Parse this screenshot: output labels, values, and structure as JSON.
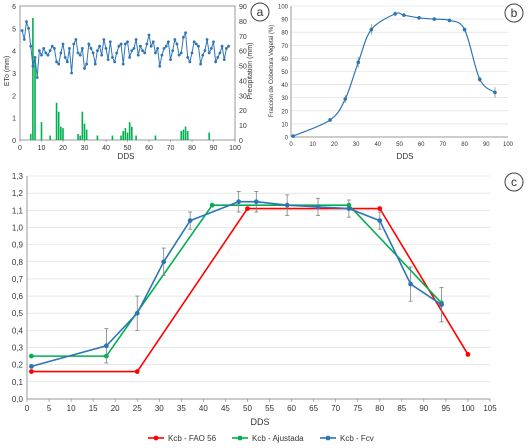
{
  "panel_labels": {
    "a": "a",
    "b": "b",
    "c": "c"
  },
  "colors": {
    "axis": "#7f7f7f",
    "grid": "#d9d9d9",
    "series_blue": "#2e75b6",
    "series_green": "#00b050",
    "series_red": "#ff0000",
    "error_bar": "#7f7f7f",
    "panel_circle": "#404040"
  },
  "chart_data": [
    {
      "id": "a",
      "type": "line",
      "xlabel": "DDS",
      "ylabel": "ETo (mm)",
      "y2label": "Precipitation (mm)",
      "xlim": [
        0,
        100
      ],
      "ylim": [
        0,
        6
      ],
      "y2lim": [
        0,
        90
      ],
      "xticks": [
        0,
        10,
        20,
        30,
        40,
        50,
        60,
        70,
        80,
        90,
        100
      ],
      "yticks": [
        0,
        1,
        2,
        3,
        4,
        5,
        6
      ],
      "y2ticks": [
        0,
        10,
        20,
        30,
        40,
        50,
        60,
        70,
        80,
        90
      ],
      "series": [
        {
          "kind": "line",
          "axis": "left",
          "x": [
            1,
            2,
            3,
            4,
            5,
            6,
            7,
            8,
            9,
            10,
            11,
            12,
            13,
            14,
            15,
            16,
            17,
            18,
            19,
            20,
            21,
            22,
            23,
            24,
            25,
            26,
            27,
            28,
            29,
            30,
            31,
            32,
            33,
            34,
            35,
            36,
            37,
            38,
            39,
            40,
            41,
            42,
            43,
            44,
            45,
            46,
            47,
            48,
            49,
            50,
            51,
            52,
            53,
            54,
            55,
            56,
            57,
            58,
            59,
            60,
            61,
            62,
            63,
            64,
            65,
            66,
            67,
            68,
            69,
            70,
            71,
            72,
            73,
            74,
            75,
            76,
            77,
            78,
            79,
            80,
            81,
            82,
            83,
            84,
            85,
            86,
            87,
            88,
            89,
            90,
            91,
            92,
            93,
            94,
            95,
            96,
            97
          ],
          "values": [
            4.9,
            4.5,
            5.3,
            5.0,
            4.2,
            3.3,
            3.7,
            2.8,
            4.0,
            3.8,
            4.1,
            3.9,
            3.8,
            4.0,
            4.2,
            4.1,
            3.5,
            3.4,
            3.9,
            4.3,
            3.7,
            3.5,
            4.1,
            3.0,
            4.3,
            4.5,
            3.9,
            3.8,
            4.1,
            3.2,
            3.4,
            4.3,
            4.1,
            3.9,
            3.4,
            4.0,
            4.2,
            3.8,
            4.5,
            4.1,
            3.6,
            4.4,
            3.7,
            3.5,
            3.9,
            4.2,
            4.3,
            3.4,
            4.3,
            4.4,
            3.7,
            4.0,
            4.1,
            4.5,
            3.8,
            4.2,
            4.0,
            3.9,
            4.3,
            4.7,
            4.2,
            4.4,
            3.9,
            4.1,
            3.3,
            3.8,
            4.1,
            4.2,
            4.4,
            3.6,
            4.0,
            4.5,
            4.3,
            3.8,
            3.9,
            4.6,
            4.8,
            3.7,
            3.5,
            3.9,
            4.4,
            4.3,
            4.2,
            3.4,
            3.8,
            4.0,
            4.5,
            3.9,
            4.1,
            4.4,
            3.5,
            3.7,
            3.9,
            4.2,
            3.6,
            4.1,
            4.2
          ]
        },
        {
          "kind": "bar",
          "axis": "right",
          "x": [
            5,
            6,
            7,
            10,
            14,
            17,
            18,
            19,
            20,
            27,
            28,
            29,
            30,
            31,
            36,
            43,
            47,
            48,
            49,
            50,
            51,
            52,
            54,
            63,
            75,
            76,
            77,
            78,
            88
          ],
          "values": [
            4,
            82,
            55,
            12,
            3,
            25,
            19,
            9,
            8,
            4,
            3,
            19,
            11,
            7,
            3,
            3,
            3,
            6,
            8,
            5,
            12,
            9,
            3,
            3,
            6,
            7,
            9,
            6,
            5
          ]
        }
      ]
    },
    {
      "id": "b",
      "type": "line",
      "xlabel": "DDS",
      "ylabel": "Fracción de Cobertura Vegetal (%)",
      "xlim": [
        0,
        100
      ],
      "ylim": [
        0,
        100
      ],
      "xticks": [
        0,
        10,
        20,
        30,
        40,
        50,
        60,
        70,
        80,
        90,
        100
      ],
      "yticks": [
        0,
        10,
        20,
        30,
        40,
        50,
        60,
        70,
        80,
        90,
        100
      ],
      "series": [
        {
          "x": [
            1,
            18,
            25,
            31,
            37,
            48,
            52,
            59,
            66,
            73,
            80,
            87,
            94
          ],
          "values": [
            0.7,
            13,
            29,
            57,
            82,
            94,
            93,
            91,
            90,
            89,
            82,
            44,
            34
          ],
          "errors": [
            0,
            1.5,
            3,
            4,
            4,
            2,
            1.5,
            1.5,
            1.5,
            1.5,
            1.5,
            2,
            4
          ]
        }
      ]
    },
    {
      "id": "c",
      "type": "line",
      "xlabel": "DDS",
      "xlim": [
        0,
        105
      ],
      "ylim": [
        0,
        1.3
      ],
      "xticks": [
        0,
        5,
        10,
        15,
        20,
        25,
        30,
        35,
        40,
        45,
        50,
        55,
        60,
        65,
        70,
        75,
        80,
        85,
        90,
        95,
        100,
        105
      ],
      "yticks": [
        "0,0",
        "0,1",
        "0,2",
        "0,3",
        "0,4",
        "0,5",
        "0,6",
        "0,7",
        "0,8",
        "0,9",
        "1,0",
        "1,1",
        "1,2",
        "1,3"
      ],
      "legend_position": "bottom",
      "series": [
        {
          "name": "Kcb - FAO 56",
          "color_key": "series_red",
          "x": [
            1,
            25,
            50,
            80,
            100
          ],
          "values": [
            0.16,
            0.16,
            1.11,
            1.11,
            0.26
          ]
        },
        {
          "name": "Kcb - Ajustada",
          "color_key": "series_green",
          "x": [
            1,
            18,
            42,
            73,
            94
          ],
          "values": [
            0.25,
            0.25,
            1.13,
            1.13,
            0.56
          ]
        },
        {
          "name": "Kcb - Fcv",
          "color_key": "series_blue",
          "x": [
            1,
            18,
            25,
            31,
            37,
            48,
            52,
            59,
            66,
            73,
            80,
            87,
            94
          ],
          "values": [
            0.19,
            0.31,
            0.5,
            0.8,
            1.04,
            1.15,
            1.15,
            1.13,
            1.12,
            1.11,
            1.04,
            0.67,
            0.55
          ],
          "errors": [
            0,
            0.1,
            0.1,
            0.08,
            0.05,
            0.06,
            0.06,
            0.06,
            0.05,
            0.05,
            0.05,
            0.1,
            0.1
          ]
        }
      ]
    }
  ]
}
